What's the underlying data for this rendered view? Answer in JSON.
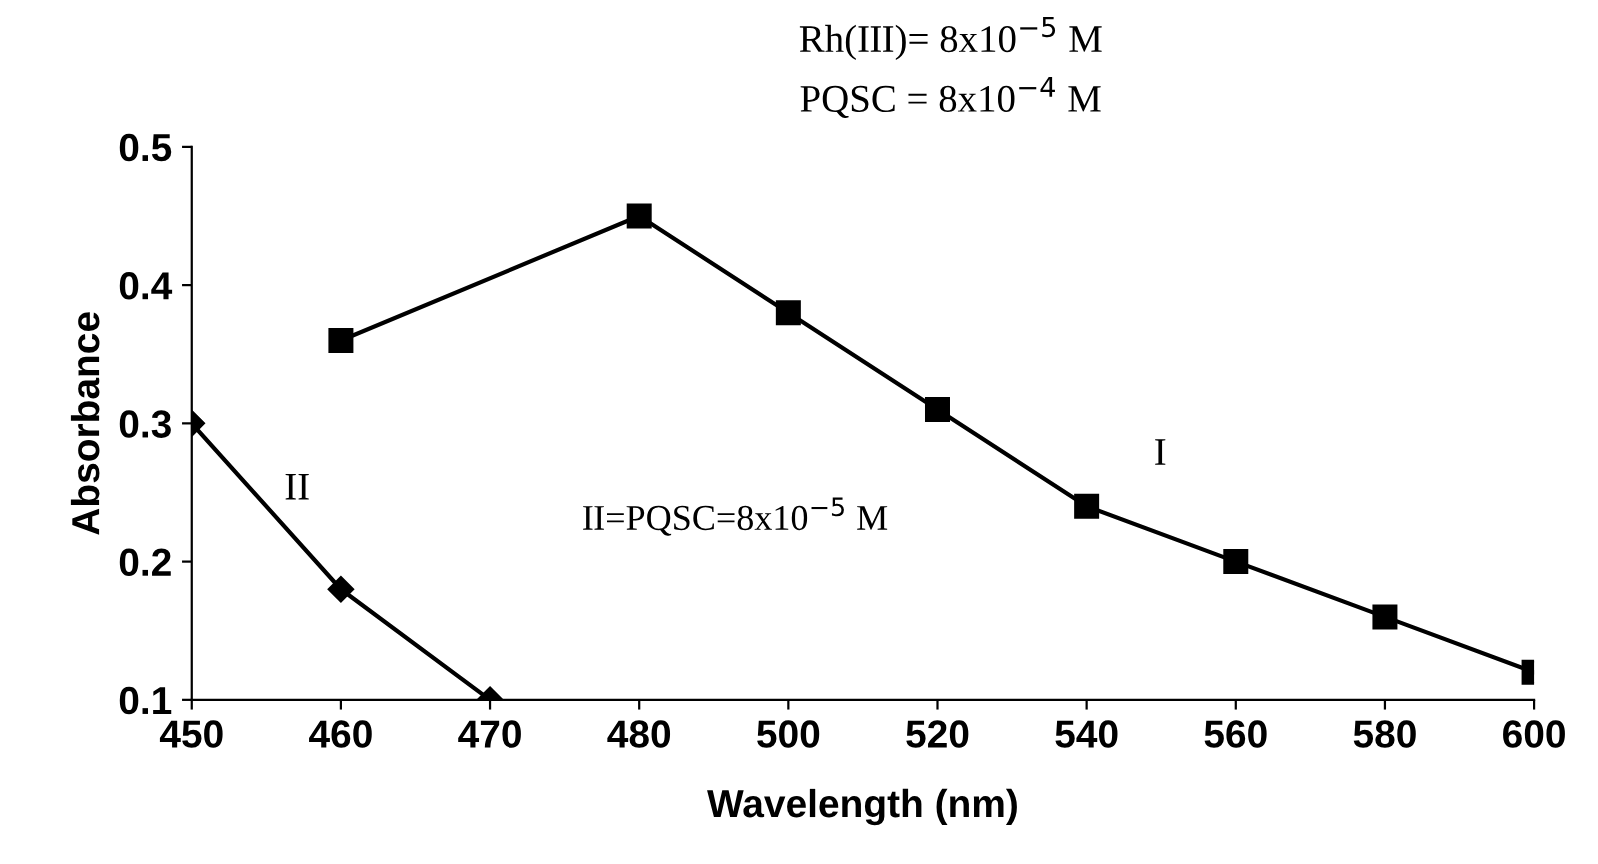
{
  "chart_data": {
    "type": "line",
    "xlabel": "Wavelength (nm)",
    "ylabel": "Absorbance",
    "categories": [
      "450",
      "460",
      "470",
      "480",
      "500",
      "520",
      "540",
      "560",
      "580",
      "600"
    ],
    "series": [
      {
        "name": "I",
        "color": "#000000",
        "marker": "square",
        "values": [
          null,
          0.36,
          null,
          0.45,
          0.38,
          0.31,
          0.24,
          0.2,
          0.16,
          0.12
        ]
      },
      {
        "name": "II",
        "color": "#000000",
        "marker": "diamond",
        "values": [
          0.3,
          0.18,
          0.1,
          null,
          null,
          null,
          null,
          null,
          null,
          null
        ]
      }
    ],
    "ylim": [
      0.1,
      0.5
    ],
    "yticks": [
      0.1,
      0.2,
      0.3,
      0.4,
      0.5
    ],
    "grid": false,
    "legend": false,
    "line_style": "solid",
    "annotations": [
      "Rh(III)= 8x10$^{−5}$ M",
      "PQSC = 8x10$^{−4}$ M",
      "II=PQSC=8x10$^{−5}$ M"
    ]
  }
}
